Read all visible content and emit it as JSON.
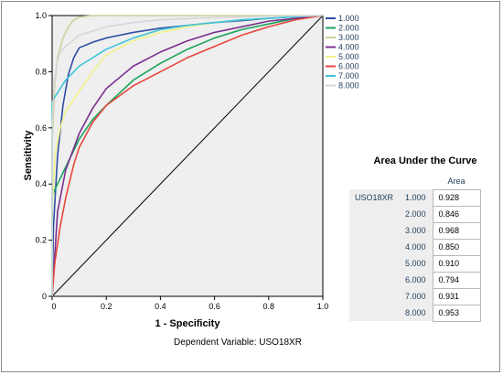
{
  "chart_data": {
    "type": "line",
    "xlabel": "1 - Specificity",
    "ylabel": "Sensitivity",
    "xlim": [
      0,
      1
    ],
    "ylim": [
      0,
      1
    ],
    "x_ticks": [
      "0",
      "0.2",
      "0.4",
      "0.6",
      "0.8",
      "1.0"
    ],
    "y_ticks": [
      "0",
      "0.2",
      "0.4",
      "0.6",
      "0.8",
      "1.0"
    ],
    "legend_position": "right",
    "grid": false,
    "footnote": "Dependent Variable: USO18XR",
    "series": [
      {
        "name": "1.000",
        "color": "#2d4fa3",
        "points": [
          [
            0,
            0
          ],
          [
            0.005,
            0.25
          ],
          [
            0.02,
            0.5
          ],
          [
            0.04,
            0.68
          ],
          [
            0.06,
            0.79
          ],
          [
            0.08,
            0.85
          ],
          [
            0.1,
            0.885
          ],
          [
            0.15,
            0.905
          ],
          [
            0.2,
            0.92
          ],
          [
            0.3,
            0.94
          ],
          [
            0.4,
            0.955
          ],
          [
            0.5,
            0.965
          ],
          [
            0.6,
            0.975
          ],
          [
            0.7,
            0.982
          ],
          [
            0.8,
            0.99
          ],
          [
            0.9,
            0.996
          ],
          [
            1,
            1
          ]
        ]
      },
      {
        "name": "2.000",
        "color": "#1aa35b",
        "points": [
          [
            0,
            0
          ],
          [
            0,
            0.36
          ],
          [
            0.01,
            0.38
          ],
          [
            0.03,
            0.42
          ],
          [
            0.05,
            0.46
          ],
          [
            0.1,
            0.56
          ],
          [
            0.15,
            0.63
          ],
          [
            0.2,
            0.68
          ],
          [
            0.3,
            0.77
          ],
          [
            0.4,
            0.83
          ],
          [
            0.5,
            0.88
          ],
          [
            0.6,
            0.92
          ],
          [
            0.7,
            0.95
          ],
          [
            0.8,
            0.97
          ],
          [
            0.9,
            0.99
          ],
          [
            1,
            1
          ]
        ]
      },
      {
        "name": "3.000",
        "color": "#cfcf9a",
        "points": [
          [
            0,
            0
          ],
          [
            0,
            0.55
          ],
          [
            0.01,
            0.76
          ],
          [
            0.02,
            0.85
          ],
          [
            0.04,
            0.92
          ],
          [
            0.06,
            0.96
          ],
          [
            0.08,
            0.985
          ],
          [
            0.1,
            0.995
          ],
          [
            0.15,
            1
          ],
          [
            1,
            1
          ]
        ]
      },
      {
        "name": "4.000",
        "color": "#7b2f8f",
        "points": [
          [
            0,
            0
          ],
          [
            0.02,
            0.3
          ],
          [
            0.05,
            0.45
          ],
          [
            0.1,
            0.58
          ],
          [
            0.15,
            0.67
          ],
          [
            0.2,
            0.74
          ],
          [
            0.3,
            0.82
          ],
          [
            0.4,
            0.87
          ],
          [
            0.5,
            0.91
          ],
          [
            0.6,
            0.94
          ],
          [
            0.7,
            0.96
          ],
          [
            0.8,
            0.98
          ],
          [
            0.9,
            0.99
          ],
          [
            1,
            1
          ]
        ]
      },
      {
        "name": "5.000",
        "color": "#f2f28a",
        "points": [
          [
            0,
            0
          ],
          [
            0,
            0.3
          ],
          [
            0.01,
            0.5
          ],
          [
            0.03,
            0.6
          ],
          [
            0.05,
            0.66
          ],
          [
            0.1,
            0.73
          ],
          [
            0.15,
            0.8
          ],
          [
            0.2,
            0.86
          ],
          [
            0.3,
            0.91
          ],
          [
            0.4,
            0.94
          ],
          [
            0.5,
            0.96
          ],
          [
            0.6,
            0.975
          ],
          [
            0.7,
            0.985
          ],
          [
            0.8,
            0.99
          ],
          [
            0.9,
            0.997
          ],
          [
            1,
            1
          ]
        ]
      },
      {
        "name": "6.000",
        "color": "#e8463c",
        "points": [
          [
            0,
            0
          ],
          [
            0.01,
            0.12
          ],
          [
            0.03,
            0.25
          ],
          [
            0.05,
            0.35
          ],
          [
            0.08,
            0.47
          ],
          [
            0.1,
            0.53
          ],
          [
            0.15,
            0.62
          ],
          [
            0.2,
            0.68
          ],
          [
            0.3,
            0.75
          ],
          [
            0.4,
            0.8
          ],
          [
            0.5,
            0.85
          ],
          [
            0.6,
            0.89
          ],
          [
            0.7,
            0.93
          ],
          [
            0.8,
            0.96
          ],
          [
            0.9,
            0.985
          ],
          [
            1,
            1
          ]
        ]
      },
      {
        "name": "7.000",
        "color": "#3ec4d8",
        "points": [
          [
            0,
            0
          ],
          [
            0,
            0.69
          ],
          [
            0.01,
            0.71
          ],
          [
            0.03,
            0.74
          ],
          [
            0.05,
            0.77
          ],
          [
            0.08,
            0.8
          ],
          [
            0.1,
            0.82
          ],
          [
            0.15,
            0.85
          ],
          [
            0.2,
            0.88
          ],
          [
            0.3,
            0.92
          ],
          [
            0.4,
            0.95
          ],
          [
            0.5,
            0.965
          ],
          [
            0.6,
            0.975
          ],
          [
            0.7,
            0.985
          ],
          [
            0.8,
            0.99
          ],
          [
            0.9,
            0.996
          ],
          [
            1,
            1
          ]
        ]
      },
      {
        "name": "8.000",
        "color": "#d7d7d7",
        "points": [
          [
            0,
            0
          ],
          [
            0,
            0.6
          ],
          [
            0.005,
            0.72
          ],
          [
            0.01,
            0.78
          ],
          [
            0.02,
            0.84
          ],
          [
            0.03,
            0.87
          ],
          [
            0.05,
            0.89
          ],
          [
            0.1,
            0.93
          ],
          [
            0.2,
            0.96
          ],
          [
            0.3,
            0.975
          ],
          [
            0.4,
            0.985
          ],
          [
            0.6,
            0.993
          ],
          [
            0.8,
            0.998
          ],
          [
            1,
            1
          ]
        ]
      }
    ],
    "reference_line": {
      "points": [
        [
          0,
          0
        ],
        [
          1,
          1
        ]
      ],
      "color": "#000000"
    }
  },
  "auc_table": {
    "title": "Area Under the Curve",
    "column_header": "Area",
    "variable": "USO18XR",
    "rows": [
      {
        "level": "1.000",
        "area": "0.928"
      },
      {
        "level": "2.000",
        "area": "0.846"
      },
      {
        "level": "3.000",
        "area": "0.968"
      },
      {
        "level": "4.000",
        "area": "0.850"
      },
      {
        "level": "5.000",
        "area": "0.910"
      },
      {
        "level": "6.000",
        "area": "0.794"
      },
      {
        "level": "7.000",
        "area": "0.931"
      },
      {
        "level": "8.000",
        "area": "0.953"
      }
    ]
  }
}
